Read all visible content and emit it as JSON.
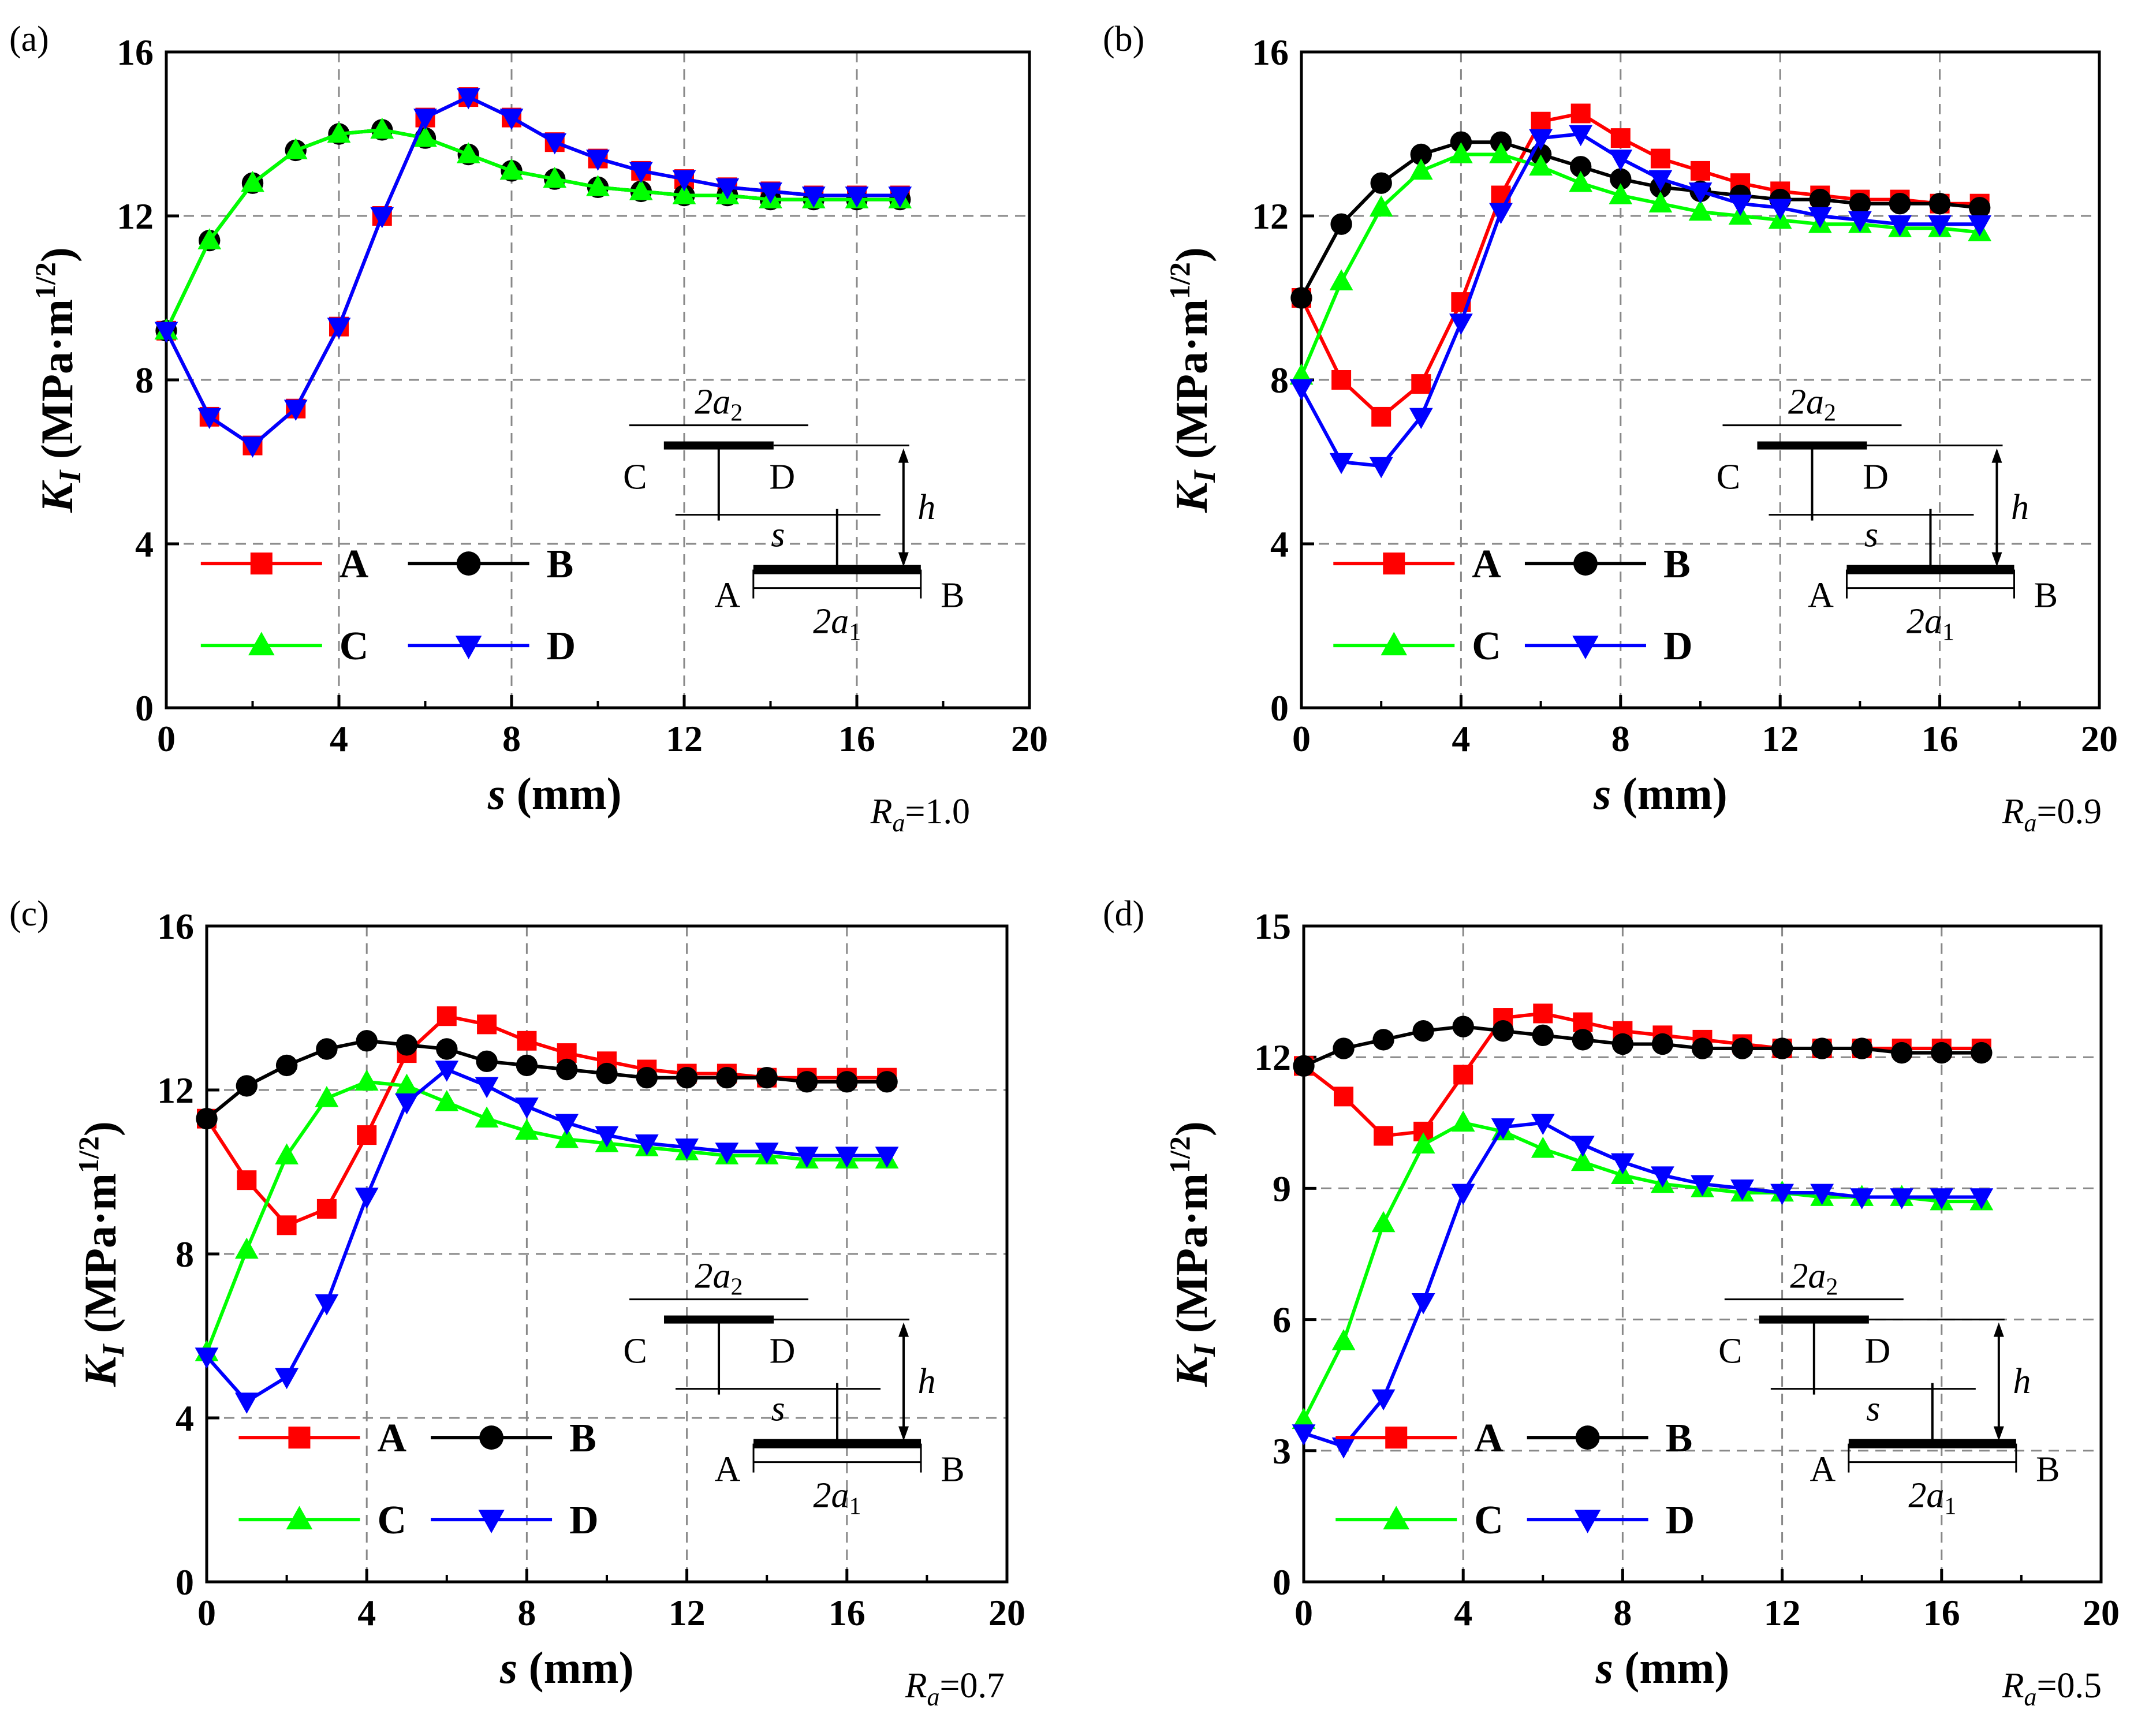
{
  "chart_data": [
    {
      "type": "line",
      "panel_label": "(a)",
      "ra_label": "1.0",
      "xlabel": "(mm)",
      "xlabel_var": "s",
      "ylabel_unit": "(MPa·m",
      "ylabel_exp": "1/2",
      "xlim": [
        0,
        20
      ],
      "ylim": [
        0,
        16
      ],
      "xticks": [
        0,
        4,
        8,
        12,
        16,
        20
      ],
      "yticks": [
        0,
        4,
        8,
        12,
        16
      ],
      "x": [
        0,
        1,
        2,
        3,
        4,
        5,
        6,
        7,
        8,
        9,
        10,
        11,
        12,
        13,
        14,
        15,
        16,
        17
      ],
      "series": [
        {
          "name": "A",
          "marker": "square",
          "color": "#ff0000",
          "values": [
            9.2,
            7.1,
            6.4,
            7.3,
            9.3,
            12.0,
            14.4,
            14.9,
            14.4,
            13.8,
            13.4,
            13.1,
            12.9,
            12.7,
            12.6,
            12.5,
            12.5,
            12.5
          ]
        },
        {
          "name": "B",
          "marker": "circle",
          "color": "#000000",
          "values": [
            9.2,
            11.4,
            12.8,
            13.6,
            14.0,
            14.1,
            13.9,
            13.5,
            13.1,
            12.9,
            12.7,
            12.6,
            12.5,
            12.5,
            12.4,
            12.4,
            12.4,
            12.4
          ]
        },
        {
          "name": "C",
          "marker": "triangle-up",
          "color": "#00ff00",
          "values": [
            9.2,
            11.4,
            12.8,
            13.6,
            14.0,
            14.1,
            13.9,
            13.5,
            13.1,
            12.9,
            12.7,
            12.6,
            12.5,
            12.5,
            12.4,
            12.4,
            12.4,
            12.4
          ]
        },
        {
          "name": "D",
          "marker": "triangle-down",
          "color": "#0000ff",
          "values": [
            9.2,
            7.1,
            6.4,
            7.3,
            9.3,
            12.0,
            14.4,
            14.9,
            14.4,
            13.8,
            13.4,
            13.1,
            12.9,
            12.7,
            12.6,
            12.5,
            12.5,
            12.5
          ]
        }
      ]
    },
    {
      "type": "line",
      "panel_label": "(b)",
      "ra_label": "0.9",
      "xlabel": "(mm)",
      "xlabel_var": "s",
      "ylabel_unit": "(MPa·m",
      "ylabel_exp": "1/2",
      "xlim": [
        0,
        20
      ],
      "ylim": [
        0,
        16
      ],
      "xticks": [
        0,
        4,
        8,
        12,
        16,
        20
      ],
      "yticks": [
        0,
        4,
        8,
        12,
        16
      ],
      "x": [
        0,
        1,
        2,
        3,
        4,
        5,
        6,
        7,
        8,
        9,
        10,
        11,
        12,
        13,
        14,
        15,
        16,
        17
      ],
      "series": [
        {
          "name": "A",
          "marker": "square",
          "color": "#ff0000",
          "values": [
            10.0,
            8.0,
            7.1,
            7.9,
            9.9,
            12.5,
            14.3,
            14.5,
            13.9,
            13.4,
            13.1,
            12.8,
            12.6,
            12.5,
            12.4,
            12.4,
            12.3,
            12.3
          ]
        },
        {
          "name": "B",
          "marker": "circle",
          "color": "#000000",
          "values": [
            10.0,
            11.8,
            12.8,
            13.5,
            13.8,
            13.8,
            13.5,
            13.2,
            12.9,
            12.7,
            12.6,
            12.5,
            12.4,
            12.4,
            12.3,
            12.3,
            12.3,
            12.2
          ]
        },
        {
          "name": "C",
          "marker": "triangle-up",
          "color": "#00ff00",
          "values": [
            8.1,
            10.4,
            12.2,
            13.1,
            13.5,
            13.5,
            13.2,
            12.8,
            12.5,
            12.3,
            12.1,
            12.0,
            11.9,
            11.8,
            11.8,
            11.7,
            11.7,
            11.6
          ]
        },
        {
          "name": "D",
          "marker": "triangle-down",
          "color": "#0000ff",
          "values": [
            7.8,
            6.0,
            5.9,
            7.1,
            9.4,
            12.1,
            13.9,
            14.0,
            13.4,
            12.9,
            12.6,
            12.3,
            12.2,
            12.0,
            11.9,
            11.8,
            11.8,
            11.8
          ]
        }
      ]
    },
    {
      "type": "line",
      "panel_label": "(c)",
      "ra_label": "0.7",
      "xlabel": "(mm)",
      "xlabel_var": "s",
      "ylabel_unit": "(MPa·m",
      "ylabel_exp": "1/2",
      "xlim": [
        0,
        20
      ],
      "ylim": [
        0,
        16
      ],
      "xticks": [
        0,
        4,
        8,
        12,
        16,
        20
      ],
      "yticks": [
        0,
        4,
        8,
        12,
        16
      ],
      "x": [
        0,
        1,
        2,
        3,
        4,
        5,
        6,
        7,
        8,
        9,
        10,
        11,
        12,
        13,
        14,
        15,
        16,
        17
      ],
      "series": [
        {
          "name": "A",
          "marker": "square",
          "color": "#ff0000",
          "values": [
            11.3,
            9.8,
            8.7,
            9.1,
            10.9,
            12.9,
            13.8,
            13.6,
            13.2,
            12.9,
            12.7,
            12.5,
            12.4,
            12.4,
            12.3,
            12.3,
            12.3,
            12.3
          ]
        },
        {
          "name": "B",
          "marker": "circle",
          "color": "#000000",
          "values": [
            11.3,
            12.1,
            12.6,
            13.0,
            13.2,
            13.1,
            13.0,
            12.7,
            12.6,
            12.5,
            12.4,
            12.3,
            12.3,
            12.3,
            12.3,
            12.2,
            12.2,
            12.2
          ]
        },
        {
          "name": "C",
          "marker": "triangle-up",
          "color": "#00ff00",
          "values": [
            5.6,
            8.1,
            10.4,
            11.8,
            12.2,
            12.1,
            11.7,
            11.3,
            11.0,
            10.8,
            10.7,
            10.6,
            10.5,
            10.4,
            10.4,
            10.3,
            10.3,
            10.3
          ]
        },
        {
          "name": "D",
          "marker": "triangle-down",
          "color": "#0000ff",
          "values": [
            5.5,
            4.4,
            5.0,
            6.8,
            9.4,
            11.7,
            12.5,
            12.1,
            11.6,
            11.2,
            10.9,
            10.7,
            10.6,
            10.5,
            10.5,
            10.4,
            10.4,
            10.4
          ]
        }
      ]
    },
    {
      "type": "line",
      "panel_label": "(d)",
      "ra_label": "0.5",
      "xlabel": "(mm)",
      "xlabel_var": "s",
      "ylabel_unit": "(MPa·m",
      "ylabel_exp": "1/2",
      "xlim": [
        0,
        20
      ],
      "ylim": [
        0,
        15
      ],
      "xticks": [
        0,
        4,
        8,
        12,
        16,
        20
      ],
      "yticks": [
        0,
        3,
        6,
        9,
        12,
        15
      ],
      "x": [
        0,
        1,
        2,
        3,
        4,
        5,
        6,
        7,
        8,
        9,
        10,
        11,
        12,
        13,
        14,
        15,
        16,
        17
      ],
      "series": [
        {
          "name": "A",
          "marker": "square",
          "color": "#ff0000",
          "values": [
            11.8,
            11.1,
            10.2,
            10.3,
            11.6,
            12.9,
            13.0,
            12.8,
            12.6,
            12.5,
            12.4,
            12.3,
            12.2,
            12.2,
            12.2,
            12.2,
            12.2,
            12.2
          ]
        },
        {
          "name": "B",
          "marker": "circle",
          "color": "#000000",
          "values": [
            11.8,
            12.2,
            12.4,
            12.6,
            12.7,
            12.6,
            12.5,
            12.4,
            12.3,
            12.3,
            12.2,
            12.2,
            12.2,
            12.2,
            12.2,
            12.1,
            12.1,
            12.1
          ]
        },
        {
          "name": "C",
          "marker": "triangle-up",
          "color": "#00ff00",
          "values": [
            3.7,
            5.5,
            8.2,
            10.0,
            10.5,
            10.3,
            9.9,
            9.6,
            9.3,
            9.1,
            9.0,
            8.9,
            8.9,
            8.8,
            8.8,
            8.8,
            8.7,
            8.7
          ]
        },
        {
          "name": "D",
          "marker": "triangle-down",
          "color": "#0000ff",
          "values": [
            3.4,
            3.1,
            4.2,
            6.4,
            8.9,
            10.4,
            10.5,
            10.0,
            9.6,
            9.3,
            9.1,
            9.0,
            8.9,
            8.9,
            8.8,
            8.8,
            8.8,
            8.8
          ]
        }
      ]
    }
  ],
  "diagram": {
    "top_width": "2a",
    "top_width_sub": "2",
    "bottom_width": "2a",
    "bottom_width_sub": "1",
    "spacing": "s",
    "height": "h",
    "tip_c": "C",
    "tip_d": "D",
    "tip_a": "A",
    "tip_b": "B"
  },
  "ylabel_var": "K",
  "ylabel_sub": "I",
  "ra_var": "R",
  "ra_sub": "a",
  "ra_eq": "=",
  "colors": {
    "grid": "#888888",
    "axis": "#000000",
    "background": "#ffffff"
  }
}
